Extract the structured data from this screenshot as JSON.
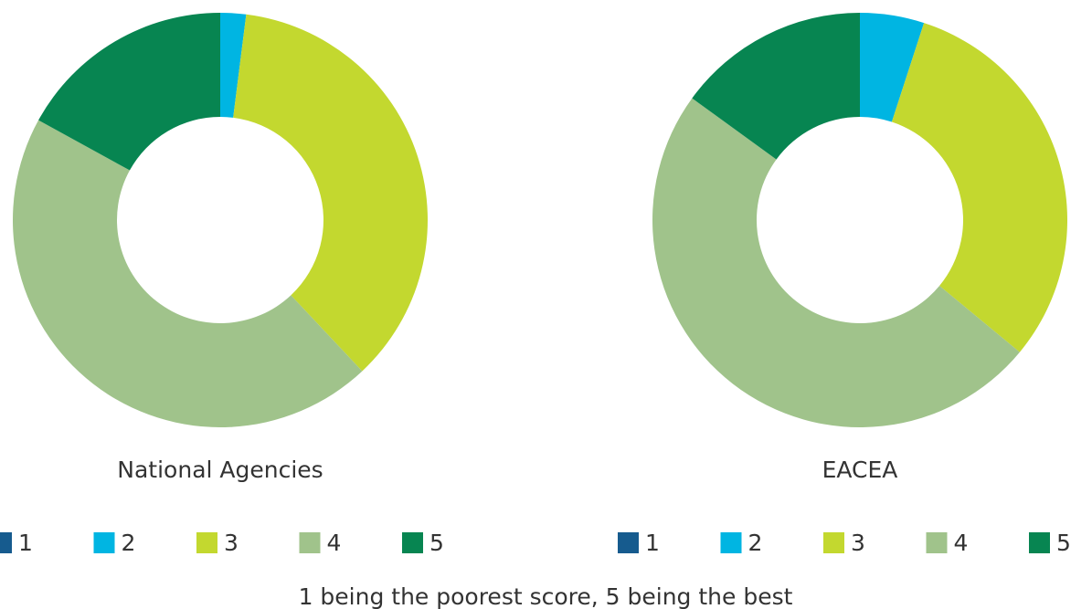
{
  "chart_data": [
    {
      "type": "pie",
      "title": "National Agencies",
      "categories": [
        "1",
        "2",
        "3",
        "4",
        "5"
      ],
      "values": [
        0,
        2,
        36,
        45,
        17
      ],
      "colors": [
        "#165b8e",
        "#00b5e2",
        "#c3d82f",
        "#a0c38b",
        "#078551"
      ]
    },
    {
      "type": "pie",
      "title": "EACEA",
      "categories": [
        "1",
        "2",
        "3",
        "4",
        "5"
      ],
      "values": [
        0,
        5,
        31,
        49,
        15
      ],
      "colors": [
        "#165b8e",
        "#00b5e2",
        "#c3d82f",
        "#a0c38b",
        "#078551"
      ]
    }
  ],
  "note": "1 being the poorest score, 5 being the best"
}
